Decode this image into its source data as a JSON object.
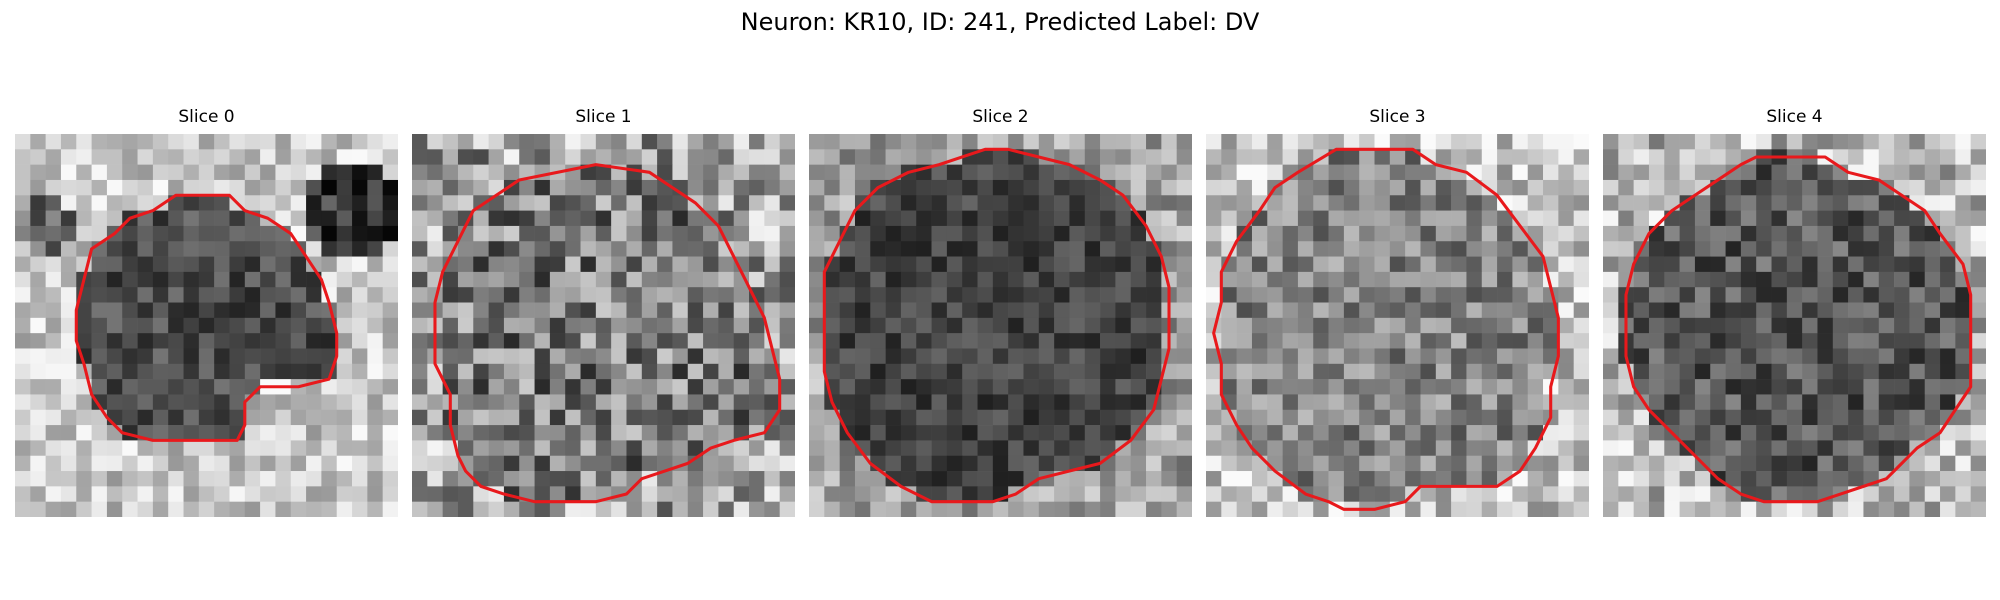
{
  "figure": {
    "title": "Neuron: KR10, ID: 241, Predicted Label: DV"
  },
  "contour_color": "#e8191c",
  "slices": [
    {
      "title": "Slice 0",
      "image": "grayscale neuron slice with a dark cell body",
      "contour": [
        [
          10.5,
          4.0
        ],
        [
          14.0,
          4.0
        ],
        [
          15.0,
          5.0
        ],
        [
          16.5,
          5.5
        ],
        [
          18.0,
          6.5
        ],
        [
          19.0,
          8.0
        ],
        [
          20.0,
          9.5
        ],
        [
          20.5,
          11.0
        ],
        [
          21.0,
          13.0
        ],
        [
          21.0,
          14.5
        ],
        [
          20.5,
          16.0
        ],
        [
          18.5,
          16.5
        ],
        [
          16.0,
          16.5
        ],
        [
          15.0,
          17.5
        ],
        [
          15.0,
          19.0
        ],
        [
          14.5,
          20.0
        ],
        [
          12.0,
          20.0
        ],
        [
          9.0,
          20.0
        ],
        [
          7.0,
          19.5
        ],
        [
          6.0,
          18.5
        ],
        [
          5.0,
          17.0
        ],
        [
          4.5,
          15.0
        ],
        [
          4.0,
          13.5
        ],
        [
          4.0,
          11.5
        ],
        [
          4.5,
          9.5
        ],
        [
          5.0,
          7.5
        ],
        [
          6.5,
          6.5
        ],
        [
          7.5,
          5.5
        ],
        [
          9.0,
          5.0
        ]
      ]
    },
    {
      "title": "Slice 1",
      "image": "noisy grayscale neuron slice",
      "contour": [
        [
          7.0,
          3.0
        ],
        [
          12.0,
          2.0
        ],
        [
          15.5,
          2.5
        ],
        [
          17.0,
          3.5
        ],
        [
          18.5,
          4.5
        ],
        [
          20.0,
          6.0
        ],
        [
          21.0,
          8.0
        ],
        [
          22.0,
          10.0
        ],
        [
          23.0,
          12.0
        ],
        [
          23.5,
          14.0
        ],
        [
          24.0,
          16.0
        ],
        [
          24.0,
          18.0
        ],
        [
          23.0,
          19.5
        ],
        [
          21.0,
          20.0
        ],
        [
          19.5,
          20.5
        ],
        [
          18.0,
          21.5
        ],
        [
          16.5,
          22.0
        ],
        [
          15.0,
          22.5
        ],
        [
          14.0,
          23.5
        ],
        [
          12.0,
          24.0
        ],
        [
          10.0,
          24.0
        ],
        [
          8.0,
          24.0
        ],
        [
          6.0,
          23.5
        ],
        [
          4.5,
          23.0
        ],
        [
          3.5,
          22.0
        ],
        [
          3.0,
          21.0
        ],
        [
          2.5,
          19.0
        ],
        [
          2.5,
          17.0
        ],
        [
          1.5,
          15.0
        ],
        [
          1.5,
          13.0
        ],
        [
          1.5,
          11.0
        ],
        [
          2.0,
          9.0
        ],
        [
          3.0,
          7.0
        ],
        [
          4.0,
          5.0
        ],
        [
          5.5,
          4.0
        ]
      ]
    },
    {
      "title": "Slice 2",
      "image": "dark grayscale neuron slice",
      "contour": [
        [
          10.0,
          1.5
        ],
        [
          11.5,
          1.0
        ],
        [
          13.0,
          1.0
        ],
        [
          15.0,
          1.5
        ],
        [
          17.0,
          2.0
        ],
        [
          19.0,
          3.0
        ],
        [
          20.5,
          4.0
        ],
        [
          22.0,
          6.0
        ],
        [
          23.0,
          8.0
        ],
        [
          23.5,
          10.0
        ],
        [
          23.5,
          12.0
        ],
        [
          23.5,
          14.0
        ],
        [
          23.0,
          16.0
        ],
        [
          22.5,
          18.0
        ],
        [
          21.0,
          20.0
        ],
        [
          19.0,
          21.5
        ],
        [
          17.0,
          22.0
        ],
        [
          15.0,
          22.5
        ],
        [
          13.5,
          23.5
        ],
        [
          12.0,
          24.0
        ],
        [
          10.0,
          24.0
        ],
        [
          8.0,
          24.0
        ],
        [
          6.0,
          23.0
        ],
        [
          4.0,
          21.5
        ],
        [
          2.5,
          19.5
        ],
        [
          1.5,
          17.5
        ],
        [
          1.0,
          15.5
        ],
        [
          1.0,
          13.0
        ],
        [
          1.0,
          11.0
        ],
        [
          1.0,
          9.0
        ],
        [
          2.0,
          7.0
        ],
        [
          3.0,
          5.0
        ],
        [
          4.5,
          3.5
        ],
        [
          6.5,
          2.5
        ],
        [
          8.5,
          2.0
        ]
      ]
    },
    {
      "title": "Slice 3",
      "image": "grayscale neuron slice",
      "contour": [
        [
          8.5,
          1.0
        ],
        [
          13.5,
          1.0
        ],
        [
          15.0,
          2.0
        ],
        [
          17.0,
          2.5
        ],
        [
          19.0,
          4.0
        ],
        [
          20.5,
          6.0
        ],
        [
          22.0,
          8.0
        ],
        [
          22.5,
          10.0
        ],
        [
          23.0,
          12.0
        ],
        [
          23.0,
          14.5
        ],
        [
          22.5,
          16.5
        ],
        [
          22.5,
          18.5
        ],
        [
          21.5,
          20.5
        ],
        [
          20.5,
          22.0
        ],
        [
          19.0,
          23.0
        ],
        [
          16.5,
          23.0
        ],
        [
          14.0,
          23.0
        ],
        [
          13.0,
          24.0
        ],
        [
          11.0,
          24.5
        ],
        [
          9.0,
          24.5
        ],
        [
          8.0,
          24.0
        ],
        [
          6.5,
          23.5
        ],
        [
          4.5,
          22.0
        ],
        [
          3.0,
          20.5
        ],
        [
          2.0,
          19.0
        ],
        [
          1.0,
          17.0
        ],
        [
          1.0,
          15.0
        ],
        [
          0.5,
          13.0
        ],
        [
          1.0,
          11.0
        ],
        [
          1.0,
          9.0
        ],
        [
          2.0,
          7.0
        ],
        [
          3.5,
          5.0
        ],
        [
          4.5,
          3.5
        ],
        [
          6.0,
          2.5
        ]
      ]
    },
    {
      "title": "Slice 4",
      "image": "grayscale neuron slice",
      "contour": [
        [
          10.0,
          1.5
        ],
        [
          14.5,
          1.5
        ],
        [
          16.0,
          2.5
        ],
        [
          18.0,
          3.0
        ],
        [
          19.5,
          4.0
        ],
        [
          21.0,
          5.0
        ],
        [
          22.0,
          6.5
        ],
        [
          23.5,
          8.5
        ],
        [
          24.0,
          10.5
        ],
        [
          24.0,
          12.5
        ],
        [
          24.0,
          14.5
        ],
        [
          24.0,
          16.5
        ],
        [
          23.0,
          18.0
        ],
        [
          22.0,
          19.5
        ],
        [
          20.5,
          20.5
        ],
        [
          19.5,
          21.5
        ],
        [
          18.5,
          22.5
        ],
        [
          17.0,
          23.0
        ],
        [
          15.5,
          23.5
        ],
        [
          14.0,
          24.0
        ],
        [
          12.0,
          24.0
        ],
        [
          10.5,
          24.0
        ],
        [
          9.0,
          23.5
        ],
        [
          7.5,
          22.5
        ],
        [
          6.0,
          21.0
        ],
        [
          4.5,
          19.5
        ],
        [
          3.0,
          18.0
        ],
        [
          2.0,
          16.5
        ],
        [
          1.5,
          14.5
        ],
        [
          1.5,
          12.5
        ],
        [
          1.5,
          10.5
        ],
        [
          2.0,
          8.5
        ],
        [
          3.0,
          6.5
        ],
        [
          4.5,
          5.0
        ],
        [
          6.0,
          4.0
        ],
        [
          7.5,
          3.0
        ],
        [
          9.0,
          2.0
        ]
      ]
    }
  ]
}
